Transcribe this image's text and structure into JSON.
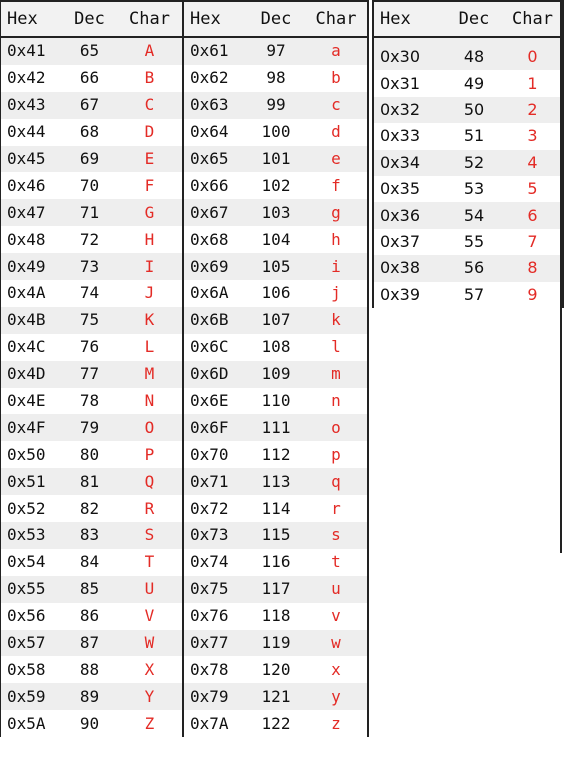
{
  "headers": {
    "hex": "Hex",
    "dec": "Dec",
    "char": "Char"
  },
  "uppercase": [
    {
      "hex": "0x41",
      "dec": "65",
      "char": "A"
    },
    {
      "hex": "0x42",
      "dec": "66",
      "char": "B"
    },
    {
      "hex": "0x43",
      "dec": "67",
      "char": "C"
    },
    {
      "hex": "0x44",
      "dec": "68",
      "char": "D"
    },
    {
      "hex": "0x45",
      "dec": "69",
      "char": "E"
    },
    {
      "hex": "0x46",
      "dec": "70",
      "char": "F"
    },
    {
      "hex": "0x47",
      "dec": "71",
      "char": "G"
    },
    {
      "hex": "0x48",
      "dec": "72",
      "char": "H"
    },
    {
      "hex": "0x49",
      "dec": "73",
      "char": "I"
    },
    {
      "hex": "0x4A",
      "dec": "74",
      "char": "J"
    },
    {
      "hex": "0x4B",
      "dec": "75",
      "char": "K"
    },
    {
      "hex": "0x4C",
      "dec": "76",
      "char": "L"
    },
    {
      "hex": "0x4D",
      "dec": "77",
      "char": "M"
    },
    {
      "hex": "0x4E",
      "dec": "78",
      "char": "N"
    },
    {
      "hex": "0x4F",
      "dec": "79",
      "char": "O"
    },
    {
      "hex": "0x50",
      "dec": "80",
      "char": "P"
    },
    {
      "hex": "0x51",
      "dec": "81",
      "char": "Q"
    },
    {
      "hex": "0x52",
      "dec": "82",
      "char": "R"
    },
    {
      "hex": "0x53",
      "dec": "83",
      "char": "S"
    },
    {
      "hex": "0x54",
      "dec": "84",
      "char": "T"
    },
    {
      "hex": "0x55",
      "dec": "85",
      "char": "U"
    },
    {
      "hex": "0x56",
      "dec": "86",
      "char": "V"
    },
    {
      "hex": "0x57",
      "dec": "87",
      "char": "W"
    },
    {
      "hex": "0x58",
      "dec": "88",
      "char": "X"
    },
    {
      "hex": "0x59",
      "dec": "89",
      "char": "Y"
    },
    {
      "hex": "0x5A",
      "dec": "90",
      "char": "Z"
    }
  ],
  "lowercase": [
    {
      "hex": "0x61",
      "dec": "97",
      "char": "a"
    },
    {
      "hex": "0x62",
      "dec": "98",
      "char": "b"
    },
    {
      "hex": "0x63",
      "dec": "99",
      "char": "c"
    },
    {
      "hex": "0x64",
      "dec": "100",
      "char": "d"
    },
    {
      "hex": "0x65",
      "dec": "101",
      "char": "e"
    },
    {
      "hex": "0x66",
      "dec": "102",
      "char": "f"
    },
    {
      "hex": "0x67",
      "dec": "103",
      "char": "g"
    },
    {
      "hex": "0x68",
      "dec": "104",
      "char": "h"
    },
    {
      "hex": "0x69",
      "dec": "105",
      "char": "i"
    },
    {
      "hex": "0x6A",
      "dec": "106",
      "char": "j"
    },
    {
      "hex": "0x6B",
      "dec": "107",
      "char": "k"
    },
    {
      "hex": "0x6C",
      "dec": "108",
      "char": "l"
    },
    {
      "hex": "0x6D",
      "dec": "109",
      "char": "m"
    },
    {
      "hex": "0x6E",
      "dec": "110",
      "char": "n"
    },
    {
      "hex": "0x6F",
      "dec": "111",
      "char": "o"
    },
    {
      "hex": "0x70",
      "dec": "112",
      "char": "p"
    },
    {
      "hex": "0x71",
      "dec": "113",
      "char": "q"
    },
    {
      "hex": "0x72",
      "dec": "114",
      "char": "r"
    },
    {
      "hex": "0x73",
      "dec": "115",
      "char": "s"
    },
    {
      "hex": "0x74",
      "dec": "116",
      "char": "t"
    },
    {
      "hex": "0x75",
      "dec": "117",
      "char": "u"
    },
    {
      "hex": "0x76",
      "dec": "118",
      "char": "v"
    },
    {
      "hex": "0x77",
      "dec": "119",
      "char": "w"
    },
    {
      "hex": "0x78",
      "dec": "120",
      "char": "x"
    },
    {
      "hex": "0x79",
      "dec": "121",
      "char": "y"
    },
    {
      "hex": "0x7A",
      "dec": "122",
      "char": "z"
    }
  ],
  "digits": [
    {
      "hex": "0x30",
      "dec": "48",
      "char": "0"
    },
    {
      "hex": "0x31",
      "dec": "49",
      "char": "1"
    },
    {
      "hex": "0x32",
      "dec": "50",
      "char": "2"
    },
    {
      "hex": "0x33",
      "dec": "51",
      "char": "3"
    },
    {
      "hex": "0x34",
      "dec": "52",
      "char": "4"
    },
    {
      "hex": "0x35",
      "dec": "53",
      "char": "5"
    },
    {
      "hex": "0x36",
      "dec": "54",
      "char": "6"
    },
    {
      "hex": "0x37",
      "dec": "55",
      "char": "7"
    },
    {
      "hex": "0x38",
      "dec": "56",
      "char": "8"
    },
    {
      "hex": "0x39",
      "dec": "57",
      "char": "9"
    }
  ],
  "colors": {
    "char": "#e32b26",
    "rule": "#222222",
    "stripe": "#eeeeee"
  }
}
